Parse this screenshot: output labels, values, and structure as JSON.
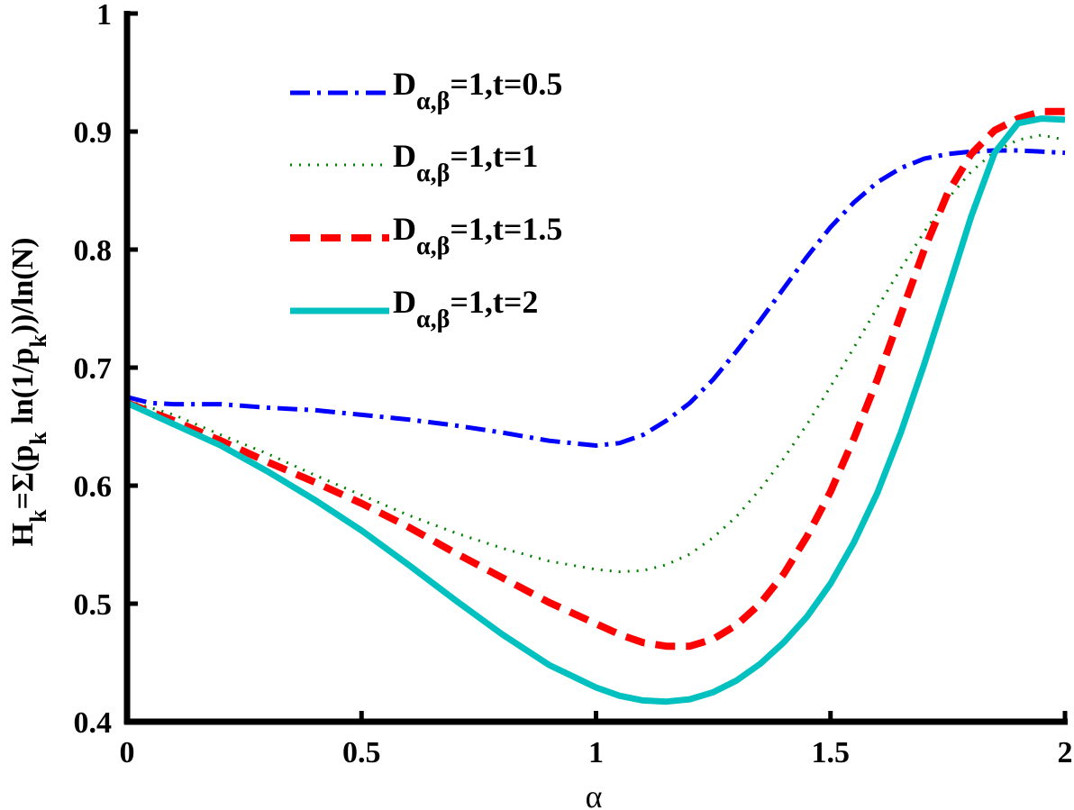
{
  "chart_data": {
    "type": "line",
    "title": "",
    "xlabel": "α",
    "ylabel": {
      "prefix": "H",
      "prefix_sub": "k",
      "body": "=Σ(p",
      "body_sub": "k",
      "mid": " ln(1/p",
      "mid_sub": "k",
      "end": "))/ln(N)"
    },
    "xlim": [
      0,
      2
    ],
    "ylim": [
      0.4,
      1
    ],
    "xticks": [
      0,
      0.5,
      1,
      1.5,
      2
    ],
    "xtick_labels": [
      "0",
      "0.5",
      "1",
      "1.5",
      "2"
    ],
    "yticks": [
      0.4,
      0.5,
      0.6,
      0.7,
      0.8,
      0.9,
      1
    ],
    "ytick_labels": [
      "0.4",
      "0.5",
      "0.6",
      "0.7",
      "0.8",
      "0.9",
      "1"
    ],
    "grid": false,
    "legend_position": "top-left",
    "series": [
      {
        "name": "t=0.5",
        "legend_main": "D",
        "legend_sub": "α,β",
        "legend_rest": "=1,t=0.5",
        "color": "#0000ff",
        "dash": "dashdot",
        "x": [
          0,
          0.05,
          0.1,
          0.2,
          0.3,
          0.4,
          0.5,
          0.6,
          0.7,
          0.8,
          0.9,
          1.0,
          1.05,
          1.1,
          1.15,
          1.2,
          1.25,
          1.3,
          1.35,
          1.4,
          1.45,
          1.5,
          1.55,
          1.6,
          1.65,
          1.7,
          1.75,
          1.8,
          1.85,
          1.9,
          1.95,
          2.0
        ],
        "y": [
          0.675,
          0.67,
          0.669,
          0.669,
          0.666,
          0.664,
          0.66,
          0.656,
          0.651,
          0.645,
          0.638,
          0.634,
          0.636,
          0.643,
          0.655,
          0.67,
          0.69,
          0.714,
          0.74,
          0.767,
          0.794,
          0.819,
          0.84,
          0.857,
          0.869,
          0.877,
          0.881,
          0.883,
          0.884,
          0.884,
          0.883,
          0.882
        ]
      },
      {
        "name": "t=1",
        "legend_main": "D",
        "legend_sub": "α,β",
        "legend_rest": "=1,t=1",
        "color": "#008000",
        "dash": "dotted",
        "x": [
          0,
          0.1,
          0.2,
          0.3,
          0.4,
          0.5,
          0.6,
          0.7,
          0.8,
          0.9,
          1.0,
          1.05,
          1.1,
          1.15,
          1.2,
          1.25,
          1.3,
          1.35,
          1.4,
          1.45,
          1.5,
          1.55,
          1.6,
          1.65,
          1.7,
          1.75,
          1.8,
          1.85,
          1.9,
          1.95,
          2.0
        ],
        "y": [
          0.672,
          0.66,
          0.643,
          0.627,
          0.609,
          0.592,
          0.575,
          0.56,
          0.547,
          0.536,
          0.529,
          0.527,
          0.528,
          0.533,
          0.542,
          0.556,
          0.574,
          0.597,
          0.623,
          0.652,
          0.684,
          0.717,
          0.751,
          0.784,
          0.815,
          0.843,
          0.866,
          0.883,
          0.893,
          0.897,
          0.893
        ]
      },
      {
        "name": "t=1.5",
        "legend_main": "D",
        "legend_sub": "α,β",
        "legend_rest": "=1,t=1.5",
        "color": "#ff0000",
        "dash": "dashed",
        "x": [
          0,
          0.1,
          0.2,
          0.3,
          0.4,
          0.5,
          0.6,
          0.7,
          0.8,
          0.9,
          1.0,
          1.05,
          1.1,
          1.15,
          1.2,
          1.25,
          1.3,
          1.35,
          1.4,
          1.45,
          1.5,
          1.55,
          1.6,
          1.65,
          1.7,
          1.75,
          1.8,
          1.85,
          1.9,
          1.95,
          2.0
        ],
        "y": [
          0.67,
          0.655,
          0.638,
          0.62,
          0.603,
          0.585,
          0.565,
          0.543,
          0.522,
          0.501,
          0.483,
          0.474,
          0.467,
          0.464,
          0.464,
          0.47,
          0.482,
          0.5,
          0.525,
          0.557,
          0.595,
          0.64,
          0.69,
          0.745,
          0.8,
          0.848,
          0.881,
          0.901,
          0.911,
          0.917,
          0.917
        ]
      },
      {
        "name": "t=2",
        "legend_main": "D",
        "legend_sub": "α,β",
        "legend_rest": "=1,t=2",
        "color": "#00c0c0",
        "dash": "solid",
        "x": [
          0,
          0.1,
          0.2,
          0.3,
          0.4,
          0.5,
          0.6,
          0.7,
          0.8,
          0.9,
          1.0,
          1.05,
          1.1,
          1.15,
          1.2,
          1.25,
          1.3,
          1.35,
          1.4,
          1.45,
          1.5,
          1.55,
          1.6,
          1.65,
          1.7,
          1.75,
          1.8,
          1.85,
          1.9,
          1.95,
          2.0
        ],
        "y": [
          0.67,
          0.652,
          0.634,
          0.612,
          0.588,
          0.562,
          0.533,
          0.503,
          0.474,
          0.448,
          0.429,
          0.422,
          0.418,
          0.417,
          0.419,
          0.425,
          0.435,
          0.449,
          0.467,
          0.489,
          0.517,
          0.552,
          0.594,
          0.645,
          0.703,
          0.765,
          0.828,
          0.882,
          0.907,
          0.911,
          0.91
        ]
      }
    ]
  }
}
